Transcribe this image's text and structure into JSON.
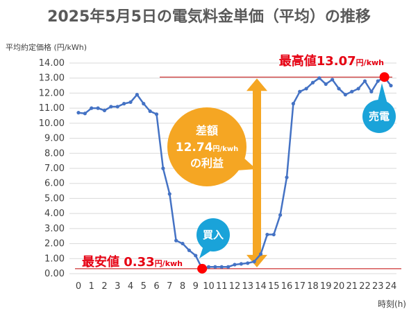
{
  "chart_data": {
    "type": "line",
    "title": "2025年5月5日の電気料金単価（平均）の推移",
    "ylabel": "平均約定価格 (円/kWh)",
    "xlabel": "時刻(h)",
    "ylim": [
      0,
      14
    ],
    "yticks": [
      "0.00",
      "1.00",
      "2.00",
      "3.00",
      "4.00",
      "5.00",
      "6.00",
      "7.00",
      "8.00",
      "9.00",
      "10.00",
      "11.00",
      "12.00",
      "13.00",
      "14.00"
    ],
    "xticks": [
      "0",
      "1",
      "2",
      "3",
      "4",
      "5",
      "6",
      "7",
      "8",
      "9",
      "10",
      "11",
      "12",
      "13",
      "14",
      "15",
      "16",
      "17",
      "18",
      "19",
      "20",
      "21",
      "22",
      "23",
      "24"
    ],
    "grid": true,
    "series": [
      {
        "color": "#4472c4",
        "x": [
          0,
          0.5,
          1,
          1.5,
          2,
          2.5,
          3,
          3.5,
          4,
          4.5,
          5,
          5.5,
          6,
          6.5,
          7,
          7.5,
          8,
          8.5,
          9,
          9.5,
          10,
          10.5,
          11,
          11.5,
          12,
          12.5,
          13,
          13.5,
          14,
          14.5,
          15,
          15.5,
          16,
          16.5,
          17,
          17.5,
          18,
          18.5,
          19,
          19.5,
          20,
          20.5,
          21,
          21.5,
          22,
          22.5,
          23,
          23.5,
          24
        ],
        "y": [
          10.7,
          10.65,
          11.0,
          11.0,
          10.85,
          11.1,
          11.1,
          11.3,
          11.4,
          11.9,
          11.3,
          10.8,
          10.6,
          7.0,
          5.3,
          2.2,
          2.0,
          1.55,
          1.2,
          0.33,
          0.45,
          0.45,
          0.45,
          0.45,
          0.6,
          0.65,
          0.7,
          0.8,
          1.3,
          2.6,
          2.6,
          3.9,
          6.4,
          11.3,
          12.1,
          12.3,
          12.7,
          13.0,
          12.6,
          12.9,
          12.3,
          11.9,
          12.1,
          12.3,
          12.8,
          12.1,
          12.8,
          13.07,
          12.5
        ]
      }
    ],
    "annotations": {
      "max_label": "最高値13.07",
      "max_unit": "円/kwh",
      "min_label": "最安値 0.33",
      "min_unit": "円/kwh",
      "diff_line1": "差額",
      "diff_line2": "12.74",
      "diff_unit": "円/kwh",
      "diff_line3": "の利益",
      "buy_label": "買入",
      "sell_label": "売電"
    },
    "colors": {
      "line": "#4472c4",
      "marker": "#ff0000",
      "arrow": "#f5a623",
      "callout_blue": "#1aa3d9",
      "ref_line": "#c00000",
      "text_red": "#e60012"
    }
  }
}
